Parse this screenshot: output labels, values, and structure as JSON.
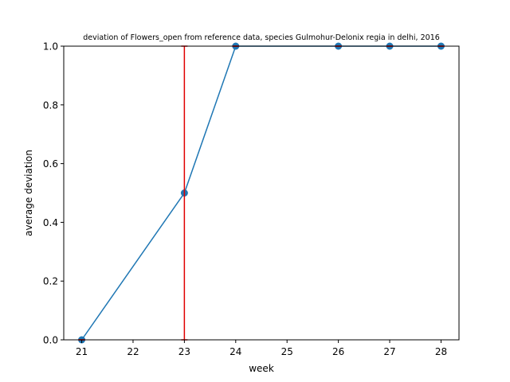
{
  "chart_data": {
    "type": "line",
    "title": "deviation of Flowers_open from reference data, species Gulmohur-Delonix regia in delhi, 2016",
    "xlabel": "week",
    "ylabel": "average deviation",
    "xlim": [
      20.65,
      28.35
    ],
    "ylim": [
      0.0,
      1.0
    ],
    "x_ticks": [
      "21",
      "22",
      "23",
      "24",
      "25",
      "26",
      "27",
      "28"
    ],
    "y_ticks": [
      "0.0",
      "0.2",
      "0.4",
      "0.6",
      "0.8",
      "1.0"
    ],
    "grid": false,
    "series": [
      {
        "color": "#1f77b4",
        "marker": "circle",
        "x": [
          21,
          23,
          24,
          26,
          27,
          28
        ],
        "values": [
          0.0,
          0.5,
          1.0,
          1.0,
          1.0,
          1.0
        ]
      }
    ],
    "error_bars": {
      "color": "#e00000",
      "items": [
        {
          "x": 21,
          "low": 0.0,
          "high": 0.0
        },
        {
          "x": 23,
          "low": 0.0,
          "high": 1.0
        },
        {
          "x": 24,
          "low": 1.0,
          "high": 1.0
        },
        {
          "x": 26,
          "low": 1.0,
          "high": 1.0
        },
        {
          "x": 27,
          "low": 1.0,
          "high": 1.0
        },
        {
          "x": 28,
          "low": 1.0,
          "high": 1.0
        }
      ]
    }
  }
}
